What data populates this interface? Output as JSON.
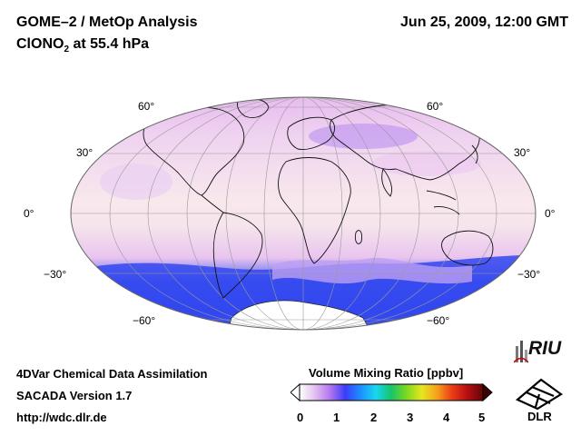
{
  "header": {
    "title_line1": "GOME–2 / MetOp Analysis",
    "title_line2_prefix": "ClONO",
    "title_line2_subscript": "2",
    "title_line2_suffix": " at 55.4 hPa",
    "datetime": "Jun 25, 2009, 12:00 GMT"
  },
  "map": {
    "projection": "Mollweide",
    "lat_labels_left": [
      "60°",
      "30°",
      "0°",
      "−30°",
      "−60°"
    ],
    "lat_labels_right": [
      "60°",
      "30°",
      "0°",
      "−30°",
      "−60°"
    ],
    "ocean_color": "#f7e7ec"
  },
  "colorbar": {
    "title": "Volume Mixing Ratio [ppbv]",
    "ticks": [
      "0",
      "1",
      "2",
      "3",
      "4",
      "5"
    ],
    "min": 0,
    "max": 5,
    "colors": [
      "#ffffff",
      "#e3c0ee",
      "#b276f0",
      "#3a3df5",
      "#1e90ff",
      "#19d6ef",
      "#18c46a",
      "#7cd820",
      "#e8e620",
      "#f4a01c",
      "#ea3a16",
      "#b40f10",
      "#620606"
    ]
  },
  "footer": {
    "line1": "4DVar Chemical Data Assimilation",
    "line2": "SACADA Version 1.7",
    "line3": "http://wdc.dlr.de"
  },
  "logos": {
    "riu": "RIU",
    "dlr": "DLR"
  }
}
